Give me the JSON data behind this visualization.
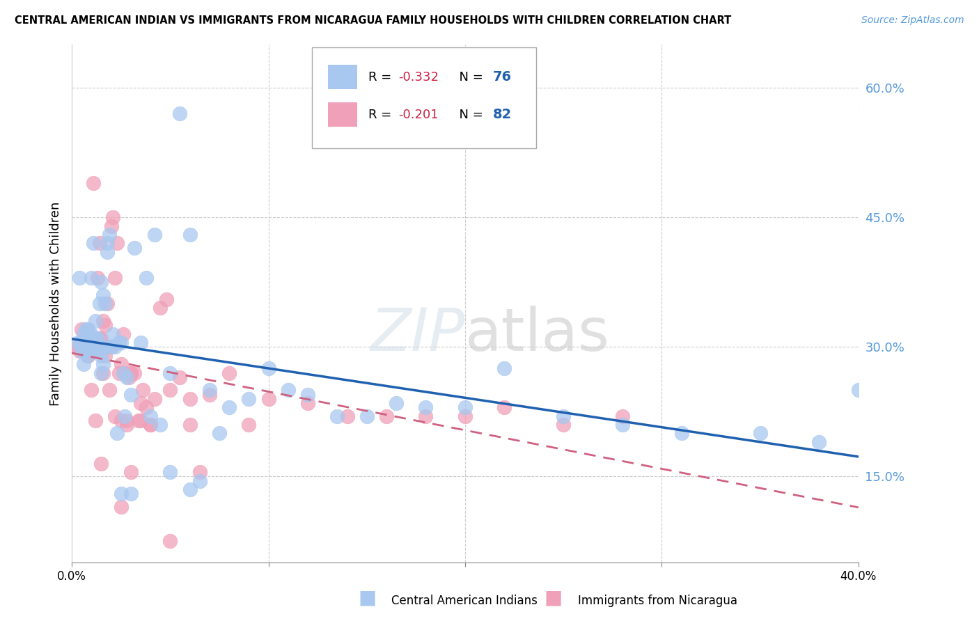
{
  "title": "CENTRAL AMERICAN INDIAN VS IMMIGRANTS FROM NICARAGUA FAMILY HOUSEHOLDS WITH CHILDREN CORRELATION CHART",
  "source": "Source: ZipAtlas.com",
  "ylabel": "Family Households with Children",
  "xmin": 0.0,
  "xmax": 0.4,
  "ymin": 0.05,
  "ymax": 0.65,
  "yticks": [
    0.15,
    0.3,
    0.45,
    0.6
  ],
  "ytick_labels": [
    "15.0%",
    "30.0%",
    "45.0%",
    "60.0%"
  ],
  "xticks": [
    0.0,
    0.1,
    0.2,
    0.3,
    0.4
  ],
  "xtick_labels": [
    "0.0%",
    "",
    "",
    "",
    "40.0%"
  ],
  "grid_color": "#cccccc",
  "blue_color": "#a8c8f0",
  "pink_color": "#f0a0b8",
  "blue_line_color": "#2060b0",
  "pink_line_color": "#d06080",
  "legend_R_blue": "-0.332",
  "legend_N_blue": "76",
  "legend_R_pink": "-0.201",
  "legend_N_pink": "82",
  "legend_label_blue": "Central American Indians",
  "legend_label_pink": "Immigrants from Nicaragua",
  "blue_scatter_x": [
    0.003,
    0.004,
    0.005,
    0.005,
    0.006,
    0.006,
    0.007,
    0.007,
    0.008,
    0.008,
    0.009,
    0.009,
    0.01,
    0.01,
    0.011,
    0.011,
    0.012,
    0.012,
    0.013,
    0.013,
    0.013,
    0.014,
    0.014,
    0.015,
    0.015,
    0.015,
    0.016,
    0.016,
    0.017,
    0.017,
    0.018,
    0.018,
    0.019,
    0.02,
    0.021,
    0.022,
    0.023,
    0.024,
    0.025,
    0.026,
    0.027,
    0.028,
    0.03,
    0.032,
    0.035,
    0.038,
    0.042,
    0.045,
    0.05,
    0.055,
    0.06,
    0.065,
    0.07,
    0.075,
    0.08,
    0.09,
    0.1,
    0.11,
    0.12,
    0.135,
    0.15,
    0.165,
    0.18,
    0.2,
    0.22,
    0.25,
    0.28,
    0.31,
    0.35,
    0.38,
    0.025,
    0.03,
    0.04,
    0.05,
    0.06,
    0.4
  ],
  "blue_scatter_y": [
    0.305,
    0.38,
    0.305,
    0.295,
    0.28,
    0.315,
    0.295,
    0.32,
    0.29,
    0.32,
    0.3,
    0.31,
    0.315,
    0.38,
    0.3,
    0.42,
    0.31,
    0.33,
    0.31,
    0.3,
    0.295,
    0.3,
    0.35,
    0.375,
    0.29,
    0.27,
    0.28,
    0.36,
    0.3,
    0.35,
    0.41,
    0.42,
    0.43,
    0.3,
    0.315,
    0.3,
    0.2,
    0.305,
    0.305,
    0.27,
    0.22,
    0.265,
    0.245,
    0.415,
    0.305,
    0.38,
    0.43,
    0.21,
    0.27,
    0.57,
    0.43,
    0.145,
    0.25,
    0.2,
    0.23,
    0.24,
    0.275,
    0.25,
    0.245,
    0.22,
    0.22,
    0.235,
    0.23,
    0.23,
    0.275,
    0.22,
    0.21,
    0.2,
    0.2,
    0.19,
    0.13,
    0.13,
    0.22,
    0.155,
    0.135,
    0.25
  ],
  "pink_scatter_x": [
    0.003,
    0.004,
    0.005,
    0.005,
    0.006,
    0.007,
    0.007,
    0.008,
    0.008,
    0.009,
    0.009,
    0.01,
    0.01,
    0.011,
    0.011,
    0.012,
    0.012,
    0.013,
    0.013,
    0.014,
    0.014,
    0.015,
    0.015,
    0.016,
    0.016,
    0.017,
    0.017,
    0.018,
    0.018,
    0.019,
    0.02,
    0.021,
    0.022,
    0.023,
    0.024,
    0.025,
    0.026,
    0.027,
    0.028,
    0.029,
    0.03,
    0.032,
    0.034,
    0.036,
    0.038,
    0.04,
    0.042,
    0.045,
    0.048,
    0.05,
    0.055,
    0.06,
    0.065,
    0.07,
    0.08,
    0.09,
    0.1,
    0.12,
    0.14,
    0.16,
    0.18,
    0.2,
    0.22,
    0.25,
    0.28,
    0.025,
    0.03,
    0.035,
    0.05,
    0.06,
    0.01,
    0.015,
    0.02,
    0.025,
    0.03,
    0.04,
    0.008,
    0.012,
    0.016,
    0.022,
    0.028,
    0.035
  ],
  "pink_scatter_y": [
    0.3,
    0.295,
    0.3,
    0.32,
    0.295,
    0.295,
    0.3,
    0.32,
    0.29,
    0.3,
    0.295,
    0.305,
    0.31,
    0.295,
    0.49,
    0.305,
    0.31,
    0.3,
    0.38,
    0.42,
    0.31,
    0.3,
    0.31,
    0.33,
    0.3,
    0.325,
    0.29,
    0.3,
    0.35,
    0.25,
    0.44,
    0.45,
    0.38,
    0.42,
    0.27,
    0.28,
    0.315,
    0.27,
    0.215,
    0.265,
    0.155,
    0.27,
    0.215,
    0.25,
    0.23,
    0.21,
    0.24,
    0.345,
    0.355,
    0.25,
    0.265,
    0.21,
    0.155,
    0.245,
    0.27,
    0.21,
    0.24,
    0.235,
    0.22,
    0.22,
    0.22,
    0.22,
    0.23,
    0.21,
    0.22,
    0.115,
    0.27,
    0.215,
    0.075,
    0.24,
    0.25,
    0.165,
    0.3,
    0.215,
    0.27,
    0.21,
    0.29,
    0.215,
    0.27,
    0.22,
    0.21,
    0.235
  ]
}
